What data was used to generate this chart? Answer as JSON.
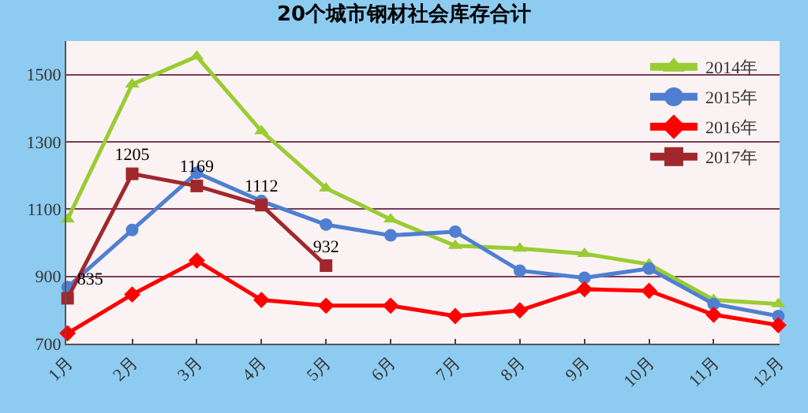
{
  "chart_data": {
    "type": "line",
    "title": "20个城市钢材社会库存合计",
    "categories": [
      "1月",
      "2月",
      "3月",
      "4月",
      "5月",
      "6月",
      "7月",
      "8月",
      "9月",
      "10月",
      "11月",
      "12月"
    ],
    "series": [
      {
        "name": "2014年",
        "color": "#99cc33",
        "marker": "triangle",
        "values": [
          1070,
          1471,
          1554,
          1332,
          1162,
          1070,
          991,
          983,
          967,
          936,
          830,
          818
        ]
      },
      {
        "name": "2015年",
        "color": "#4f7fd0",
        "marker": "circle",
        "values": [
          868,
          1038,
          1208,
          1124,
          1054,
          1022,
          1033,
          917,
          896,
          923,
          818,
          782
        ]
      },
      {
        "name": "2016年",
        "color": "#ff0000",
        "marker": "diamond",
        "values": [
          731,
          846,
          947,
          830,
          813,
          813,
          782,
          799,
          862,
          857,
          786,
          755
        ]
      },
      {
        "name": "2017年",
        "color": "#a0282c",
        "marker": "square",
        "values": [
          835,
          1205,
          1169,
          1112,
          932,
          null,
          null,
          null,
          null,
          null,
          null,
          null
        ],
        "value_labels": [
          "835",
          "1205",
          "1169",
          "1112",
          "932",
          null,
          null,
          null,
          null,
          null,
          null,
          null
        ]
      }
    ],
    "ylim": [
      700,
      1600
    ],
    "yticks": [
      700,
      900,
      1100,
      1300,
      1500
    ],
    "grid": "y",
    "legend": "top right"
  }
}
